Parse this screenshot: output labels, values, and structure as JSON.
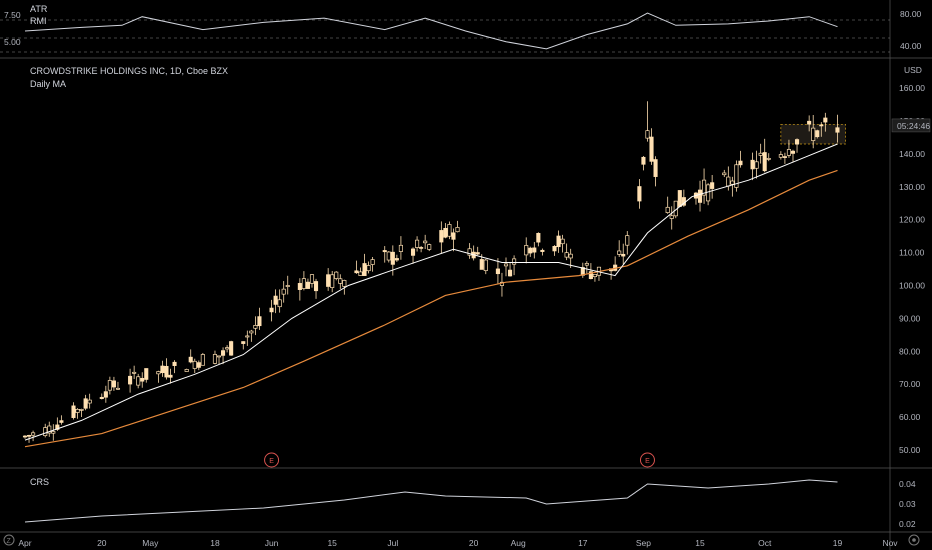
{
  "header": {
    "symbol_title": "CROWDSTRIKE HOLDINGS INC, 1D, Cboe BZX",
    "ma_label": "Daily MA",
    "currency": "USD",
    "countdown": "05:24:46"
  },
  "indicators": {
    "atr_label": "ATR",
    "rmi_label": "RMI",
    "atr_ticks": [
      "7.50",
      "5.00"
    ],
    "rmi_ticks": [
      "80.00",
      "40.00"
    ],
    "crs_label": "CRS",
    "crs_ticks": [
      "0.04",
      "0.03",
      "0.02"
    ]
  },
  "colors": {
    "background": "#000000",
    "candle_fill": "#ffe0b2",
    "wick": "#ffe0b2",
    "ma_fast": "#ffffff",
    "ma_slow": "#e68a3c",
    "earnings_badge": "#d9534f",
    "grid": "#3a3a3a"
  },
  "earnings_badge_label": "E",
  "bottom_toolbar": {
    "left_icon": "timezone-icon",
    "right_icon": "settings-icon"
  },
  "chart_data": {
    "type": "candlestick",
    "title": "CROWDSTRIKE HOLDINGS INC, 1D, Cboe BZX",
    "ylim": [
      45,
      165
    ],
    "y_ticks": [
      "160.00",
      "150.00",
      "140.00",
      "130.00",
      "120.00",
      "110.00",
      "100.00",
      "90.00",
      "80.00",
      "70.00",
      "60.00",
      "50.00"
    ],
    "x_ticks": [
      "Apr",
      "20",
      "May",
      "18",
      "Jun",
      "15",
      "Jul",
      "20",
      "Aug",
      "17",
      "Sep",
      "15",
      "Oct",
      "19",
      "Nov"
    ],
    "x_tick_days": [
      1,
      20,
      32,
      48,
      62,
      77,
      92,
      112,
      123,
      139,
      154,
      168,
      184,
      202,
      215
    ],
    "close_series": [
      [
        1,
        54
      ],
      [
        8,
        57
      ],
      [
        15,
        63
      ],
      [
        22,
        69
      ],
      [
        29,
        72
      ],
      [
        36,
        74
      ],
      [
        43,
        77
      ],
      [
        50,
        79
      ],
      [
        55,
        84
      ],
      [
        61,
        90
      ],
      [
        67,
        102
      ],
      [
        74,
        100
      ],
      [
        81,
        103
      ],
      [
        88,
        107
      ],
      [
        95,
        110
      ],
      [
        102,
        112
      ],
      [
        107,
        117
      ],
      [
        112,
        110
      ],
      [
        119,
        103
      ],
      [
        126,
        113
      ],
      [
        133,
        113
      ],
      [
        138,
        106
      ],
      [
        142,
        104
      ],
      [
        147,
        105
      ],
      [
        152,
        118
      ],
      [
        155,
        148
      ],
      [
        159,
        122
      ],
      [
        166,
        128
      ],
      [
        173,
        130
      ],
      [
        180,
        136
      ],
      [
        187,
        140
      ],
      [
        194,
        146
      ],
      [
        199,
        148
      ],
      [
        202,
        146
      ]
    ],
    "ma_fast_series": [
      [
        1,
        53
      ],
      [
        15,
        59
      ],
      [
        29,
        67
      ],
      [
        43,
        73
      ],
      [
        55,
        79
      ],
      [
        67,
        90
      ],
      [
        81,
        100
      ],
      [
        95,
        106
      ],
      [
        107,
        111
      ],
      [
        119,
        107
      ],
      [
        133,
        107
      ],
      [
        147,
        103
      ],
      [
        155,
        116
      ],
      [
        166,
        127
      ],
      [
        180,
        132
      ],
      [
        194,
        139
      ],
      [
        202,
        143
      ]
    ],
    "ma_slow_series": [
      [
        1,
        51
      ],
      [
        20,
        55
      ],
      [
        40,
        63
      ],
      [
        55,
        69
      ],
      [
        70,
        77
      ],
      [
        90,
        88
      ],
      [
        105,
        97
      ],
      [
        120,
        101
      ],
      [
        138,
        103
      ],
      [
        150,
        106
      ],
      [
        165,
        115
      ],
      [
        180,
        123
      ],
      [
        195,
        132
      ],
      [
        202,
        135
      ]
    ],
    "earnings_days": [
      62,
      155
    ],
    "consolidation_box": {
      "x_start": 188,
      "x_end": 204,
      "y_low": 143,
      "y_high": 149
    },
    "indicator_rmi_series": [
      [
        1,
        60
      ],
      [
        15,
        65
      ],
      [
        25,
        68
      ],
      [
        30,
        80
      ],
      [
        45,
        62
      ],
      [
        60,
        72
      ],
      [
        75,
        78
      ],
      [
        90,
        62
      ],
      [
        100,
        78
      ],
      [
        110,
        60
      ],
      [
        120,
        45
      ],
      [
        130,
        35
      ],
      [
        140,
        55
      ],
      [
        150,
        70
      ],
      [
        155,
        85
      ],
      [
        162,
        68
      ],
      [
        175,
        70
      ],
      [
        185,
        74
      ],
      [
        195,
        80
      ],
      [
        202,
        66
      ]
    ],
    "crs_series": [
      [
        1,
        0.021
      ],
      [
        20,
        0.024
      ],
      [
        40,
        0.026
      ],
      [
        60,
        0.028
      ],
      [
        80,
        0.032
      ],
      [
        95,
        0.036
      ],
      [
        105,
        0.034
      ],
      [
        125,
        0.033
      ],
      [
        130,
        0.03
      ],
      [
        150,
        0.033
      ],
      [
        155,
        0.04
      ],
      [
        170,
        0.038
      ],
      [
        185,
        0.04
      ],
      [
        195,
        0.042
      ],
      [
        202,
        0.041
      ]
    ],
    "crs_ylim": [
      0.018,
      0.046
    ],
    "rmi_ylim": [
      25,
      95
    ]
  }
}
